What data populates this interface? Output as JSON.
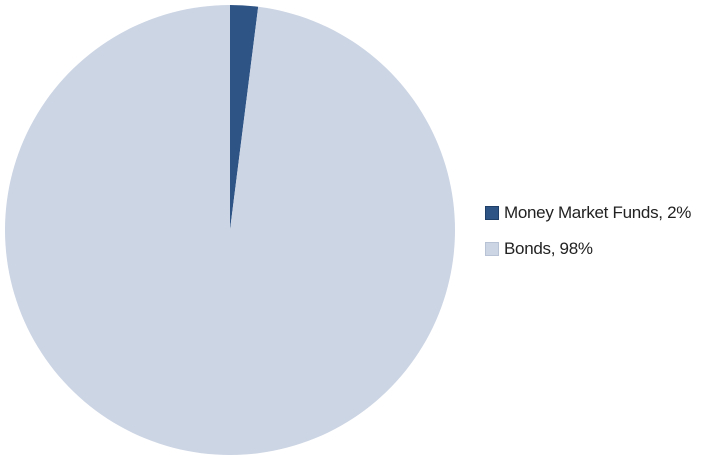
{
  "chart_data": {
    "type": "pie",
    "title": "",
    "slices": [
      {
        "label": "Money Market Funds, 2%",
        "value": 2,
        "color": "#2e5486"
      },
      {
        "label": "Bonds, 98%",
        "value": 98,
        "color": "#ccd5e4"
      }
    ],
    "start_angle": "top (12 o'clock)",
    "direction": "clockwise",
    "legend_position": "right"
  }
}
